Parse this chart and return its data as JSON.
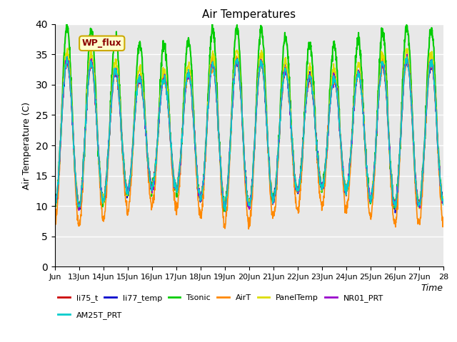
{
  "title": "Air Temperatures",
  "xlabel": "Time",
  "ylabel": "Air Temperature (C)",
  "ylim": [
    0,
    40
  ],
  "yticks": [
    0,
    5,
    10,
    15,
    20,
    25,
    30,
    35,
    40
  ],
  "xtick_labels": [
    "Jun",
    "13Jun",
    "14Jun",
    "15Jun",
    "16Jun",
    "17Jun",
    "18Jun",
    "19Jun",
    "20Jun",
    "21Jun",
    "22Jun",
    "23Jun",
    "24Jun",
    "25Jun",
    "26Jun",
    "27Jun",
    "28"
  ],
  "series": {
    "li75_t": {
      "color": "#cc0000",
      "lw": 1.2
    },
    "li77_temp": {
      "color": "#0000cc",
      "lw": 1.2
    },
    "Tsonic": {
      "color": "#00cc00",
      "lw": 1.5
    },
    "AirT": {
      "color": "#ff8800",
      "lw": 1.2
    },
    "PanelTemp": {
      "color": "#dddd00",
      "lw": 1.2
    },
    "NR01_PRT": {
      "color": "#9900cc",
      "lw": 1.2
    },
    "AM25T_PRT": {
      "color": "#00cccc",
      "lw": 1.2
    }
  },
  "axes_face_color": "#e8e8e8",
  "figure_face_color": "#ffffff",
  "annotation_text": "WP_flux",
  "annotation_fx": 0.07,
  "annotation_fy": 0.91,
  "n_days": 16,
  "pts_per_day": 96,
  "base_mean": 22.0,
  "base_amp": 10.5,
  "tsonic_extra": 5.5,
  "airt_low_shift": -3.0
}
